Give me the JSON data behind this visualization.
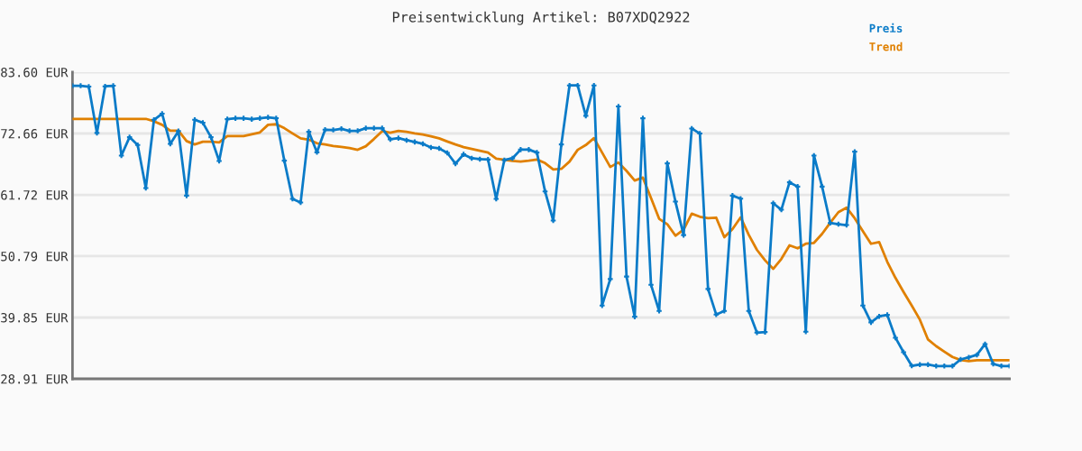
{
  "chart_data": {
    "type": "line",
    "title": "Preisentwicklung Artikel: B07XDQ2922",
    "categories": [
      null,
      null,
      null,
      null,
      null,
      null,
      null,
      null,
      null,
      null,
      null,
      null,
      null,
      null,
      null,
      null,
      null,
      null,
      null,
      null,
      null,
      null,
      null,
      null,
      null,
      null,
      null,
      null,
      null,
      null,
      null,
      null,
      null,
      null,
      null,
      null,
      null,
      null,
      null,
      null,
      null,
      null,
      null,
      null,
      null,
      null,
      null,
      null,
      null,
      null,
      null,
      null,
      null,
      null,
      null,
      null,
      null,
      null,
      null,
      null,
      null,
      null,
      null,
      null,
      null,
      null,
      null,
      null,
      null,
      null,
      null,
      null,
      null,
      null,
      null,
      null,
      null,
      null,
      null,
      null,
      null,
      null,
      null,
      null,
      null,
      null,
      null,
      null,
      null,
      null,
      null,
      null,
      null,
      null,
      null,
      null,
      null,
      null,
      null,
      null,
      null,
      null,
      null,
      null,
      null,
      null,
      null,
      null,
      null,
      null,
      null,
      null,
      null,
      null,
      null,
      null
    ],
    "series": [
      {
        "name": "Preis",
        "color": "#0a7bc8",
        "marker": "cross",
        "values": [
          81.18,
          81.18,
          81.02,
          72.76,
          81.07,
          81.18,
          68.73,
          72.0,
          70.6,
          62.93,
          75.11,
          76.19,
          70.82,
          73.08,
          61.58,
          75.11,
          74.58,
          72.0,
          67.76,
          75.22,
          75.38,
          75.38,
          75.22,
          75.38,
          75.54,
          75.38,
          67.81,
          61.0,
          60.35,
          72.97,
          69.31,
          73.34,
          73.29,
          73.5,
          73.13,
          73.13,
          73.61,
          73.61,
          73.61,
          71.63,
          71.84,
          71.47,
          71.15,
          70.82,
          70.18,
          70.02,
          69.21,
          67.28,
          68.94,
          68.25,
          68.09,
          68.02,
          61.0,
          67.93,
          68.25,
          69.79,
          69.79,
          69.26,
          62.33,
          57.13,
          70.71,
          81.23,
          81.23,
          75.82,
          81.23,
          41.99,
          46.71,
          77.48,
          47.14,
          39.99,
          75.38,
          45.69,
          41.02,
          67.33,
          60.51,
          54.55,
          73.56,
          72.65,
          44.94,
          40.38,
          41.02,
          61.58,
          61.05,
          41.02,
          37.15,
          37.25,
          60.24,
          59.06,
          63.95,
          63.19,
          37.32,
          68.73,
          63.19,
          56.7,
          56.49,
          56.33,
          69.42,
          41.99,
          38.98,
          40.06,
          40.31,
          36.24,
          33.66,
          31.24,
          31.45,
          31.45,
          31.19,
          31.19,
          31.19,
          32.37,
          32.74,
          33.18,
          35.11,
          31.56,
          31.19,
          31.19
        ]
      },
      {
        "name": "Trend",
        "color": "#e08000",
        "marker": "none",
        "values": [
          75.27,
          75.27,
          75.27,
          75.27,
          75.27,
          75.27,
          75.27,
          75.27,
          75.27,
          75.27,
          74.85,
          74.21,
          73.18,
          73.18,
          71.31,
          70.71,
          71.2,
          71.2,
          71.08,
          72.21,
          72.21,
          72.21,
          72.53,
          72.85,
          74.21,
          74.31,
          73.61,
          72.69,
          71.79,
          71.57,
          70.92,
          70.71,
          70.44,
          70.28,
          70.07,
          69.75,
          70.39,
          71.68,
          73.08,
          72.81,
          73.13,
          72.97,
          72.69,
          72.48,
          72.16,
          71.79,
          71.24,
          70.71,
          70.23,
          69.91,
          69.58,
          69.26,
          68.18,
          67.97,
          67.76,
          67.65,
          67.81,
          68.02,
          67.38,
          66.25,
          66.36,
          67.65,
          69.75,
          70.6,
          71.84,
          69.26,
          66.69,
          67.49,
          65.99,
          64.27,
          64.8,
          61.16,
          57.45,
          56.49,
          54.44,
          55.52,
          58.36,
          57.82,
          57.55,
          57.66,
          54.17,
          55.62,
          57.71,
          54.6,
          51.91,
          50.04,
          48.53,
          50.3,
          52.72,
          52.19,
          53.0,
          53.15,
          54.76,
          56.75,
          58.63,
          59.44,
          57.55,
          55.25,
          53.0,
          53.31,
          49.77,
          46.92,
          44.4,
          41.99,
          39.46,
          35.92,
          34.74,
          33.77,
          32.81,
          32.26,
          32.05,
          32.21,
          32.21,
          32.21,
          32.21,
          32.21
        ]
      }
    ],
    "ylim": [
      28.91,
      83.6
    ],
    "yticks": [
      {
        "value": 28.91,
        "label": "28.91 EUR"
      },
      {
        "value": 39.85,
        "label": "39.85 EUR"
      },
      {
        "value": 50.79,
        "label": "50.79 EUR"
      },
      {
        "value": 61.72,
        "label": "61.72 EUR"
      },
      {
        "value": 72.66,
        "label": "72.66 EUR"
      },
      {
        "value": 83.6,
        "label": "83.60 EUR"
      }
    ],
    "grid": "y",
    "legend": "top right",
    "tick_labels": "y",
    "line_style": "solid"
  }
}
